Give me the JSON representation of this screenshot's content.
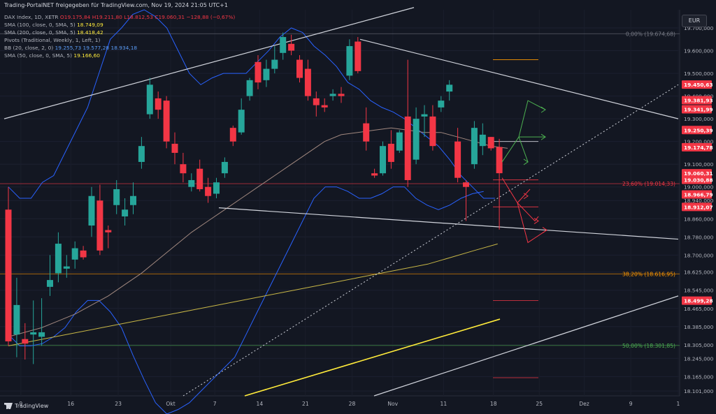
{
  "header": {
    "title": "Trading-PortalNET freigegeben für TradingView.com, Nov 19, 2024 21:05 UTC+1",
    "currency_button": "EUR",
    "legend": [
      {
        "label": "DAX Index, 1D, XETR",
        "values": "O19.175,84  H19.211,80  L18.812,53  C19.060,31  −128,88 (−0,67%)",
        "color": "#f23645"
      },
      {
        "label": "SMA (100, close, 0, SMA, 5)",
        "values": "18.749,09",
        "color": "#ffeb3b"
      },
      {
        "label": "SMA (200, close, 0, SMA, 5)",
        "values": "18.418,42",
        "color": "#ffeb3b"
      },
      {
        "label": "Pivots (Traditional, Weekly, 1, Left, 1)",
        "values": "",
        "color": "#b2b5be"
      },
      {
        "label": "BB (20, close, 2, 0)",
        "values": "19.255,73  19.577,28  18.934,18",
        "color": "#5b9cf6"
      },
      {
        "label": "SMA (50, close, 0, SMA, 5)",
        "values": "19.166,60",
        "color": "#ffeb3b"
      }
    ],
    "footer": "TradingView"
  },
  "chart_data": {
    "type": "candlestick",
    "symbol": "DAX Index, 1D, XETR",
    "ylim": [
      18080,
      19780
    ],
    "y_ticks": [
      19700,
      19600,
      19500,
      19400,
      19300,
      19200,
      19100,
      19000,
      18940,
      18860,
      18780,
      18700,
      18625,
      18545,
      18465,
      18385,
      18305,
      18245,
      18165,
      18101
    ],
    "x_ticks": [
      "9",
      "16",
      "23",
      "Okt",
      "7",
      "14",
      "21",
      "28",
      "Nov",
      "11",
      "18",
      "25",
      "Dez",
      "9",
      "1"
    ],
    "candles": [
      {
        "o": 18900,
        "h": 19000,
        "l": 18300,
        "c": 18320
      },
      {
        "o": 18350,
        "h": 18600,
        "l": 18250,
        "c": 18480
      },
      {
        "o": 18330,
        "h": 18400,
        "l": 18240,
        "c": 18310
      },
      {
        "o": 18350,
        "h": 18500,
        "l": 18220,
        "c": 18360
      },
      {
        "o": 18340,
        "h": 18510,
        "l": 18300,
        "c": 18360
      },
      {
        "o": 18560,
        "h": 18700,
        "l": 18520,
        "c": 18590
      },
      {
        "o": 18620,
        "h": 18800,
        "l": 18580,
        "c": 18750
      },
      {
        "o": 18640,
        "h": 18700,
        "l": 18600,
        "c": 18650
      },
      {
        "o": 18680,
        "h": 18760,
        "l": 18640,
        "c": 18730
      },
      {
        "o": 18720,
        "h": 18740,
        "l": 18680,
        "c": 18690
      },
      {
        "o": 18830,
        "h": 19000,
        "l": 18780,
        "c": 18960
      },
      {
        "o": 18940,
        "h": 19010,
        "l": 18700,
        "c": 18720
      },
      {
        "o": 18810,
        "h": 18830,
        "l": 18730,
        "c": 18800
      },
      {
        "o": 18920,
        "h": 19030,
        "l": 18880,
        "c": 18990
      },
      {
        "o": 18870,
        "h": 18950,
        "l": 18830,
        "c": 18900
      },
      {
        "o": 18920,
        "h": 19020,
        "l": 18880,
        "c": 18960
      },
      {
        "o": 19110,
        "h": 19220,
        "l": 19080,
        "c": 19180
      },
      {
        "o": 19320,
        "h": 19480,
        "l": 19300,
        "c": 19450
      },
      {
        "o": 19390,
        "h": 19420,
        "l": 19300,
        "c": 19340
      },
      {
        "o": 19380,
        "h": 19400,
        "l": 19170,
        "c": 19200
      },
      {
        "o": 19190,
        "h": 19240,
        "l": 19100,
        "c": 19150
      },
      {
        "o": 19100,
        "h": 19150,
        "l": 19020,
        "c": 19060
      },
      {
        "o": 19000,
        "h": 19060,
        "l": 18980,
        "c": 19030
      },
      {
        "o": 19080,
        "h": 19120,
        "l": 18980,
        "c": 18990
      },
      {
        "o": 19000,
        "h": 19040,
        "l": 18930,
        "c": 18960
      },
      {
        "o": 18970,
        "h": 19040,
        "l": 18950,
        "c": 19020
      },
      {
        "o": 19060,
        "h": 19130,
        "l": 19040,
        "c": 19110
      },
      {
        "o": 19260,
        "h": 19270,
        "l": 19180,
        "c": 19200
      },
      {
        "o": 19240,
        "h": 19390,
        "l": 19230,
        "c": 19340
      },
      {
        "o": 19400,
        "h": 19480,
        "l": 19380,
        "c": 19470
      },
      {
        "o": 19550,
        "h": 19580,
        "l": 19430,
        "c": 19460
      },
      {
        "o": 19470,
        "h": 19560,
        "l": 19440,
        "c": 19520
      },
      {
        "o": 19520,
        "h": 19620,
        "l": 19500,
        "c": 19560
      },
      {
        "o": 19590,
        "h": 19680,
        "l": 19560,
        "c": 19660
      },
      {
        "o": 19630,
        "h": 19670,
        "l": 19580,
        "c": 19600
      },
      {
        "o": 19560,
        "h": 19580,
        "l": 19460,
        "c": 19480
      },
      {
        "o": 19520,
        "h": 19560,
        "l": 19380,
        "c": 19400
      },
      {
        "o": 19390,
        "h": 19420,
        "l": 19310,
        "c": 19360
      },
      {
        "o": 19360,
        "h": 19390,
        "l": 19330,
        "c": 19350
      },
      {
        "o": 19400,
        "h": 19430,
        "l": 19380,
        "c": 19410
      },
      {
        "o": 19410,
        "h": 19440,
        "l": 19370,
        "c": 19400
      },
      {
        "o": 19490,
        "h": 19650,
        "l": 19470,
        "c": 19620
      },
      {
        "o": 19640,
        "h": 19660,
        "l": 19500,
        "c": 19510
      },
      {
        "o": 19280,
        "h": 19350,
        "l": 19160,
        "c": 19200
      },
      {
        "o": 19060,
        "h": 19080,
        "l": 19040,
        "c": 19050
      },
      {
        "o": 19060,
        "h": 19200,
        "l": 19050,
        "c": 19180
      },
      {
        "o": 19190,
        "h": 19250,
        "l": 19080,
        "c": 19110
      },
      {
        "o": 19160,
        "h": 19250,
        "l": 19150,
        "c": 19240
      },
      {
        "o": 19310,
        "h": 19560,
        "l": 19000,
        "c": 19030
      },
      {
        "o": 19120,
        "h": 19350,
        "l": 19100,
        "c": 19300
      },
      {
        "o": 19310,
        "h": 19360,
        "l": 19220,
        "c": 19320
      },
      {
        "o": 19310,
        "h": 19360,
        "l": 19160,
        "c": 19180
      },
      {
        "o": 19350,
        "h": 19400,
        "l": 19330,
        "c": 19380
      },
      {
        "o": 19420,
        "h": 19470,
        "l": 19380,
        "c": 19450
      },
      {
        "o": 19200,
        "h": 19260,
        "l": 19020,
        "c": 19040
      },
      {
        "o": 19020,
        "h": 19030,
        "l": 18850,
        "c": 19000
      },
      {
        "o": 19100,
        "h": 19290,
        "l": 19080,
        "c": 19260
      },
      {
        "o": 19180,
        "h": 19280,
        "l": 19140,
        "c": 19230
      },
      {
        "o": 19220,
        "h": 19220,
        "l": 19160,
        "c": 19170
      },
      {
        "o": 19175.84,
        "h": 19211.8,
        "l": 18812.53,
        "c": 19060.31
      }
    ],
    "price_labels": [
      {
        "value": 19450.63,
        "text": "19.450,63",
        "color": "#f23645"
      },
      {
        "value": 19381.93,
        "text": "19.381,93",
        "color": "#f23645"
      },
      {
        "value": 19341.99,
        "text": "19.341,99",
        "color": "#f23645"
      },
      {
        "value": 19250.39,
        "text": "19.250,39",
        "color": "#f23645"
      },
      {
        "value": 19174.78,
        "text": "19.174,78",
        "color": "#f23645"
      },
      {
        "value": 19060.31,
        "text": "19.060,31",
        "color": "#f23645"
      },
      {
        "value": 19030.88,
        "text": "19.030,88",
        "color": "#f23645"
      },
      {
        "value": 18966.79,
        "text": "18.966,79",
        "color": "#f23645"
      },
      {
        "value": 18912.07,
        "text": "18.912,07",
        "color": "#f23645"
      },
      {
        "value": 18499.28,
        "text": "18.499,28",
        "color": "#f23645"
      }
    ],
    "fib_levels": [
      {
        "value": 19674.68,
        "text": "0,00% (19.674,68)",
        "color": "#787b86"
      },
      {
        "value": 19014.33,
        "text": "23,60% (19.014,33)",
        "color": "#f23645"
      },
      {
        "value": 18616.95,
        "text": "38,20% (18.616,95)",
        "color": "#ff9800"
      },
      {
        "value": 18301.85,
        "text": "50,00% (18.301,85)",
        "color": "#4caf50"
      }
    ],
    "colors": {
      "up": "#26a69a",
      "down": "#f23645",
      "sma": "#ffeb3b",
      "bb": "#2962ff",
      "trend": "#d1d4dc",
      "bg": "#131722"
    }
  }
}
